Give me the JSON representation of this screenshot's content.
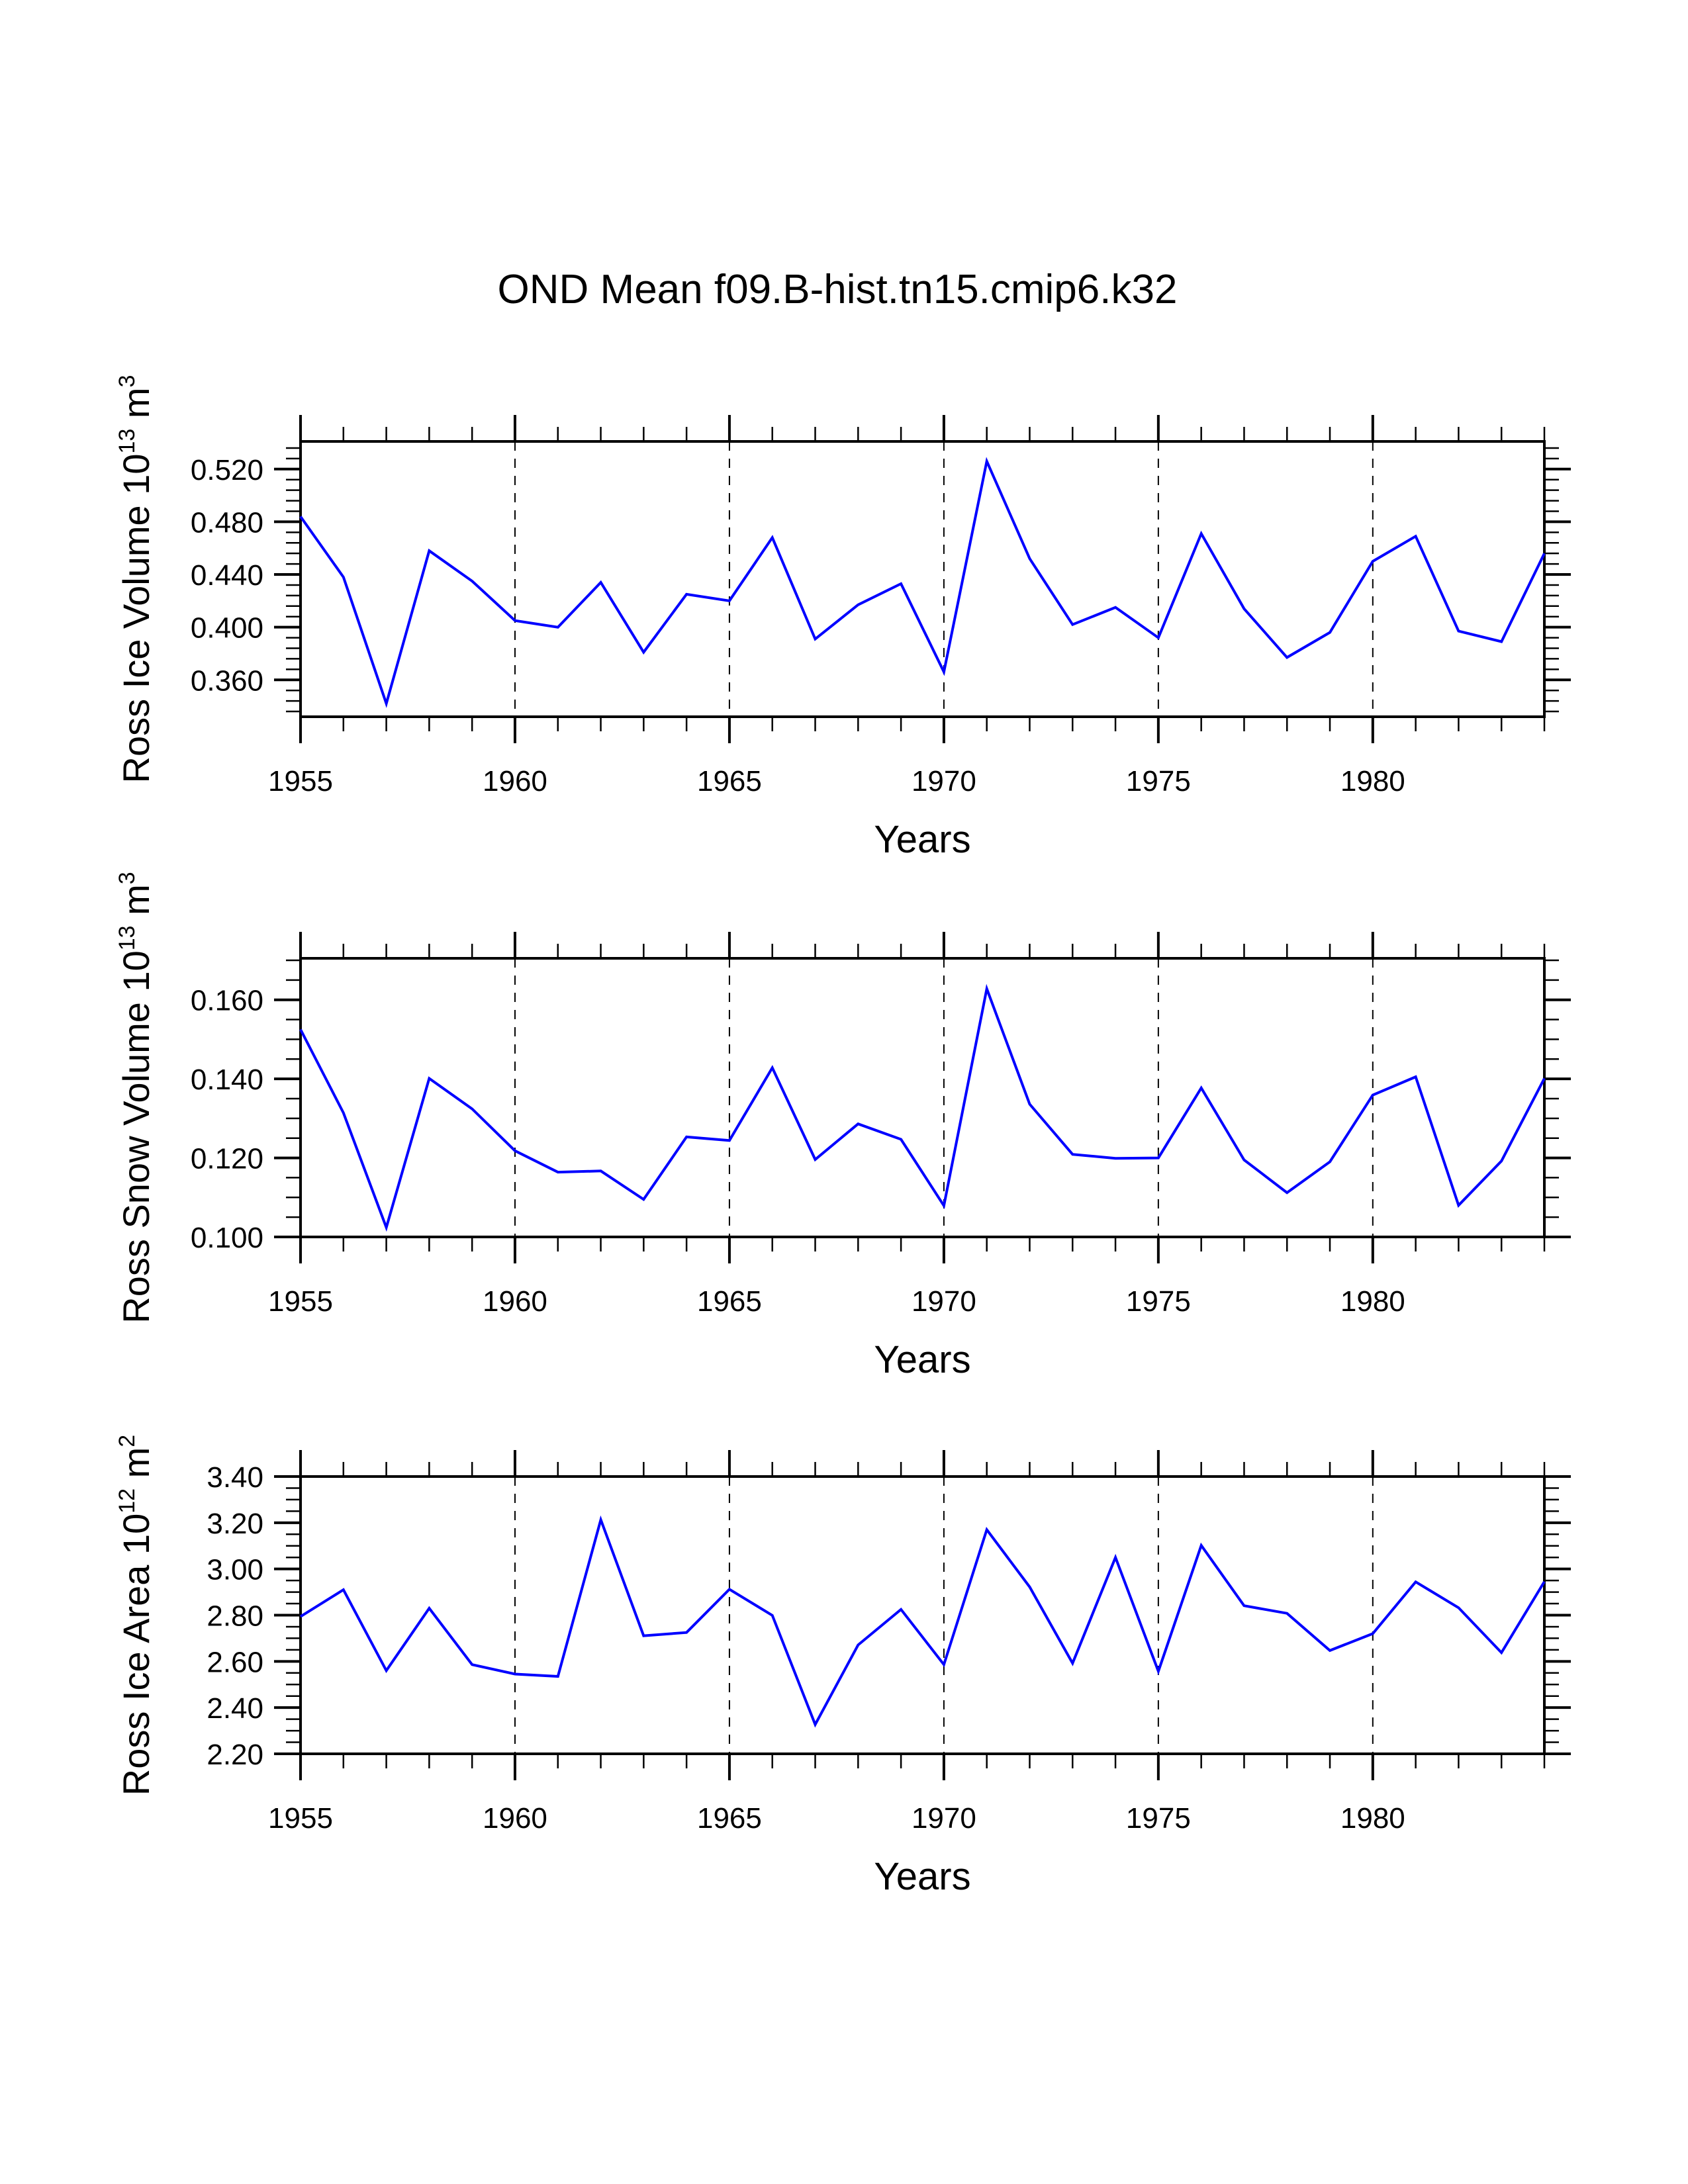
{
  "chart_data": {
    "type": "line",
    "title": "OND Mean f09.B-hist.tn15.cmip6.k32",
    "line_color": "#0000ff",
    "x": [
      1955,
      1956,
      1957,
      1958,
      1959,
      1960,
      1961,
      1962,
      1963,
      1964,
      1965,
      1966,
      1967,
      1968,
      1969,
      1970,
      1971,
      1972,
      1973,
      1974,
      1975,
      1976,
      1977,
      1978,
      1979,
      1980,
      1981,
      1982,
      1983,
      1984
    ],
    "xlim": [
      1955,
      1984
    ],
    "x_major_ticks": [
      1955,
      1960,
      1965,
      1970,
      1975,
      1980
    ],
    "x_tick_labels": [
      "1955",
      "1960",
      "1965",
      "1970",
      "1975",
      "1980"
    ],
    "vertical_reference_lines": [
      1960,
      1965,
      1970,
      1975,
      1980
    ],
    "panels": [
      {
        "name": "ross-ice-volume",
        "ylabel": "Ross Ice Volume 10",
        "ylabel_exp": "13",
        "ylabel_unit": " m",
        "ylabel_unit_exp": "3",
        "xlabel": "Years",
        "ylim": [
          0.332,
          0.541
        ],
        "y_major_ticks": [
          0.36,
          0.4,
          0.44,
          0.48,
          0.52
        ],
        "y_tick_labels": [
          "0.360",
          "0.400",
          "0.440",
          "0.480",
          "0.520"
        ],
        "y_minor_step": 0.008,
        "values": [
          0.484,
          0.438,
          0.342,
          0.458,
          0.435,
          0.405,
          0.4,
          0.434,
          0.381,
          0.425,
          0.42,
          0.468,
          0.391,
          0.417,
          0.433,
          0.366,
          0.526,
          0.452,
          0.402,
          0.415,
          0.392,
          0.471,
          0.414,
          0.377,
          0.396,
          0.45,
          0.469,
          0.397,
          0.389,
          0.456
        ]
      },
      {
        "name": "ross-snow-volume",
        "ylabel": "Ross Snow Volume 10",
        "ylabel_exp": "13",
        "ylabel_unit": " m",
        "ylabel_unit_exp": "3",
        "xlabel": "Years",
        "ylim": [
          0.1,
          0.1705
        ],
        "y_major_ticks": [
          0.1,
          0.12,
          0.14,
          0.16
        ],
        "y_tick_labels": [
          "0.100",
          "0.120",
          "0.140",
          "0.160"
        ],
        "y_minor_step": 0.005,
        "values": [
          0.1525,
          0.1314,
          0.1024,
          0.1401,
          0.1324,
          0.1218,
          0.1164,
          0.1167,
          0.1095,
          0.1253,
          0.1244,
          0.1428,
          0.1196,
          0.1286,
          0.1247,
          0.1079,
          0.1628,
          0.1336,
          0.1209,
          0.1199,
          0.12,
          0.1377,
          0.1195,
          0.1112,
          0.119,
          0.1359,
          0.1405,
          0.108,
          0.1192,
          0.1401
        ]
      },
      {
        "name": "ross-ice-area",
        "ylabel": "Ross Ice Area 10",
        "ylabel_exp": "12",
        "ylabel_unit": " m",
        "ylabel_unit_exp": "2",
        "xlabel": "Years",
        "ylim": [
          2.2,
          3.4
        ],
        "y_major_ticks": [
          2.2,
          2.4,
          2.6,
          2.8,
          3.0,
          3.2,
          3.4
        ],
        "y_tick_labels": [
          "2.20",
          "2.40",
          "2.60",
          "2.80",
          "3.00",
          "3.20",
          "3.40"
        ],
        "y_minor_step": 0.05,
        "values": [
          2.794,
          2.91,
          2.56,
          2.83,
          2.586,
          2.545,
          2.535,
          3.213,
          2.711,
          2.725,
          2.912,
          2.799,
          2.327,
          2.671,
          2.825,
          2.586,
          3.17,
          2.922,
          2.592,
          3.05,
          2.557,
          3.102,
          2.841,
          2.808,
          2.647,
          2.72,
          2.944,
          2.832,
          2.638,
          2.945
        ]
      }
    ]
  }
}
